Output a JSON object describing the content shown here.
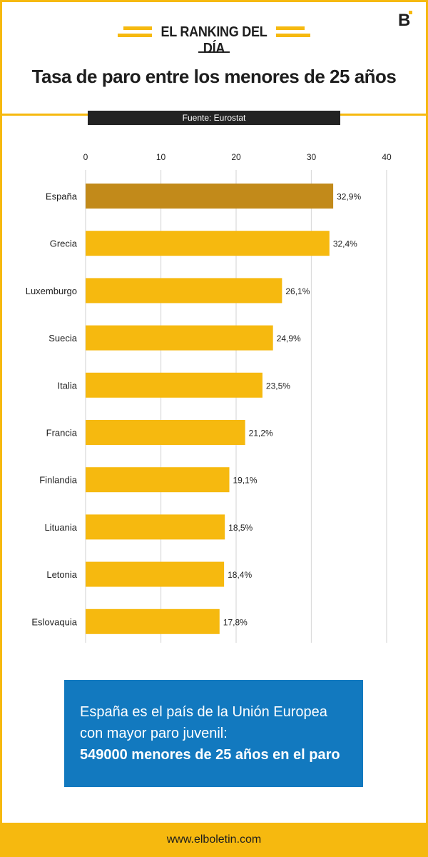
{
  "header": {
    "ranking_label": "EL RANKING DEL DÍA",
    "title": "Tasa de paro entre los menores de 25 años",
    "logo_text": "B"
  },
  "source": "Fuente: Eurostat",
  "colors": {
    "accent": "#f6b90f",
    "highlight": "#c28a1a",
    "bar": "#f6b90f",
    "callout": "#1279bf",
    "dark": "#232323"
  },
  "chart_data": {
    "type": "bar",
    "orientation": "horizontal",
    "categories": [
      "España",
      "Grecia",
      "Luxemburgo",
      "Suecia",
      "Italia",
      "Francia",
      "Finlandia",
      "Lituania",
      "Letonia",
      "Eslovaquia"
    ],
    "values": [
      32.9,
      32.4,
      26.1,
      24.9,
      23.5,
      21.2,
      19.1,
      18.5,
      18.4,
      17.8
    ],
    "value_labels": [
      "32,9%",
      "32,4%",
      "26,1%",
      "24,9%",
      "23,5%",
      "21,2%",
      "19,1%",
      "18,5%",
      "18,4%",
      "17,8%"
    ],
    "highlight_index": 0,
    "xlim": [
      0,
      40
    ],
    "xticks": [
      0,
      10,
      20,
      30,
      40
    ],
    "xtick_labels": [
      "0",
      "10",
      "20",
      "30",
      "40"
    ],
    "tick_position": "top",
    "grid": true
  },
  "callout": {
    "line1": "España es el país de la Unión Europea",
    "line2": "con mayor paro juvenil:",
    "line3": "549000 menores de 25 años en el paro"
  },
  "footer": {
    "url": "www.elboletin.com"
  }
}
